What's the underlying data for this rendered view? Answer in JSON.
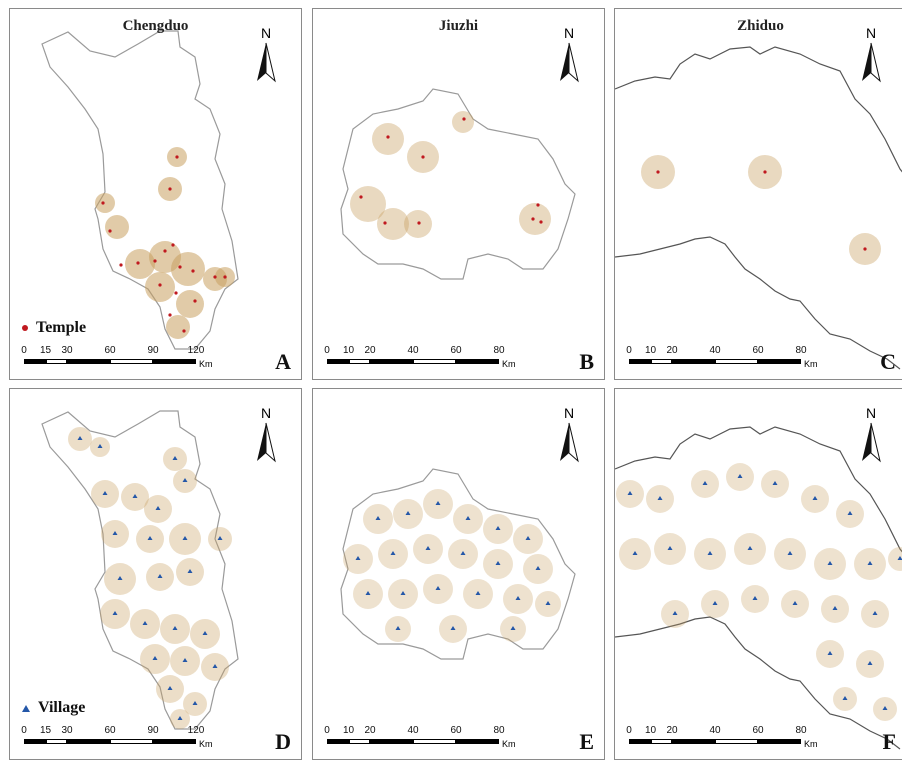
{
  "colors": {
    "boundary": "#9a9a9a",
    "road_line": "#555555",
    "buffer_fill": "#c8a061",
    "temple": "#c0191f",
    "village": "#2457a8"
  },
  "panels": [
    {
      "id": "A",
      "letter": "A",
      "title": "Chengduo",
      "region": "chengduo",
      "legend": {
        "label": "Temple",
        "symbol": "temple-dot"
      },
      "scale": {
        "ticks": [
          "0",
          "15",
          "30",
          "60",
          "90",
          "120"
        ],
        "unit": "Km"
      },
      "north": "N"
    },
    {
      "id": "B",
      "letter": "B",
      "title": "Jiuzhi",
      "region": "jiuzhi",
      "legend": null,
      "scale": {
        "ticks": [
          "0",
          "10",
          "20",
          "40",
          "60",
          "80"
        ],
        "unit": "Km"
      },
      "north": "N"
    },
    {
      "id": "C",
      "letter": "C",
      "title": "Zhiduo",
      "region": "zhiduo",
      "legend": null,
      "scale": {
        "ticks": [
          "0",
          "10",
          "20",
          "40",
          "60",
          "80"
        ],
        "unit": "Km"
      },
      "north": "N"
    },
    {
      "id": "D",
      "letter": "D",
      "title": "",
      "region": "chengduo",
      "legend": {
        "label": "Village",
        "symbol": "village-triangle"
      },
      "scale": {
        "ticks": [
          "0",
          "15",
          "30",
          "60",
          "90",
          "120"
        ],
        "unit": "Km"
      },
      "north": "N"
    },
    {
      "id": "E",
      "letter": "E",
      "title": "",
      "region": "jiuzhi",
      "legend": null,
      "scale": {
        "ticks": [
          "0",
          "10",
          "20",
          "40",
          "60",
          "80"
        ],
        "unit": "Km"
      },
      "north": "N"
    },
    {
      "id": "F",
      "letter": "F",
      "title": "",
      "region": "zhiduo",
      "legend": null,
      "scale": {
        "ticks": [
          "0",
          "10",
          "20",
          "40",
          "60",
          "80"
        ],
        "unit": "Km"
      },
      "north": "N"
    }
  ]
}
